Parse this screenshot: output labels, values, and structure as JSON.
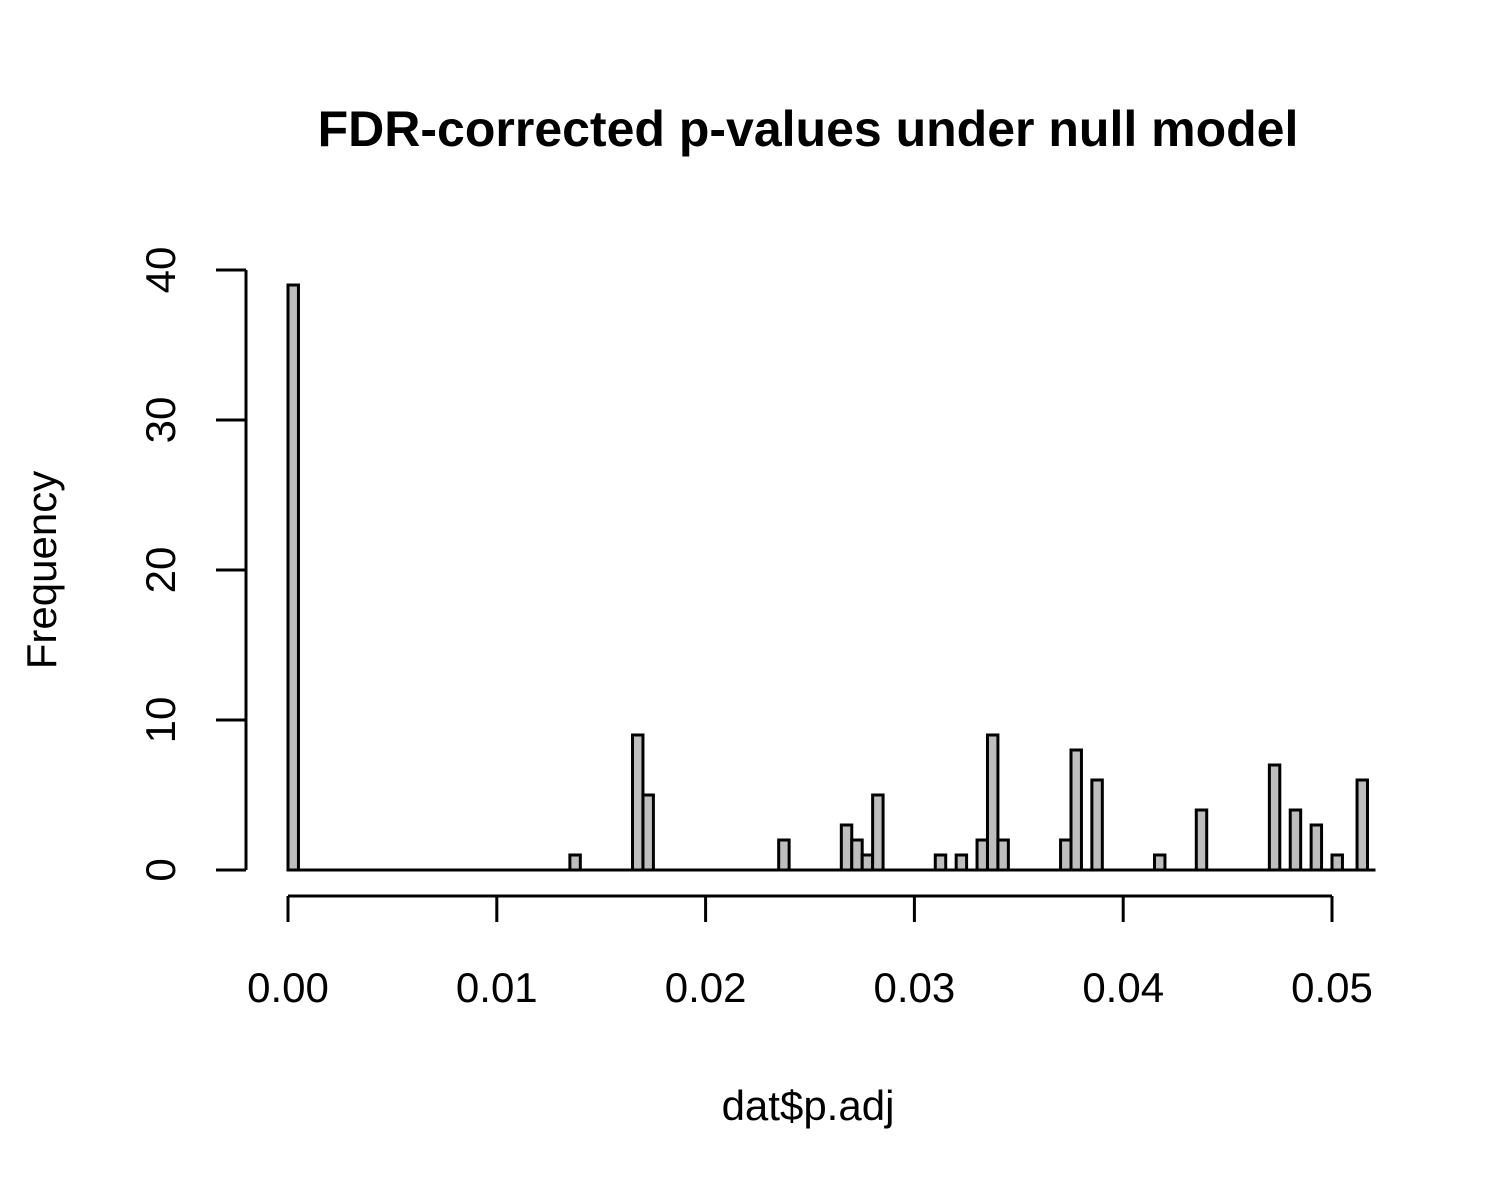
{
  "chart_data": {
    "type": "bar",
    "title": "FDR-corrected p-values under null model",
    "xlabel": "dat$p.adj",
    "ylabel": "Frequency",
    "xlim": [
      0.0,
      0.052
    ],
    "ylim": [
      0,
      40
    ],
    "bin_width": 0.0005,
    "x_ticks": [
      0.0,
      0.01,
      0.02,
      0.03,
      0.04,
      0.05
    ],
    "x_tick_labels": [
      "0.00",
      "0.01",
      "0.02",
      "0.03",
      "0.04",
      "0.05"
    ],
    "y_ticks": [
      0,
      10,
      20,
      30,
      40
    ],
    "y_tick_labels": [
      "0",
      "10",
      "20",
      "30",
      "40"
    ],
    "grid": false,
    "bars": [
      {
        "x0": 0.0,
        "x1": 0.0005,
        "count": 39
      },
      {
        "x0": 0.0135,
        "x1": 0.014,
        "count": 1
      },
      {
        "x0": 0.0165,
        "x1": 0.017,
        "count": 9
      },
      {
        "x0": 0.017,
        "x1": 0.0175,
        "count": 5
      },
      {
        "x0": 0.0235,
        "x1": 0.024,
        "count": 2
      },
      {
        "x0": 0.0265,
        "x1": 0.027,
        "count": 3
      },
      {
        "x0": 0.027,
        "x1": 0.0275,
        "count": 2
      },
      {
        "x0": 0.0275,
        "x1": 0.028,
        "count": 1
      },
      {
        "x0": 0.028,
        "x1": 0.0285,
        "count": 5
      },
      {
        "x0": 0.031,
        "x1": 0.0315,
        "count": 1
      },
      {
        "x0": 0.032,
        "x1": 0.0325,
        "count": 1
      },
      {
        "x0": 0.033,
        "x1": 0.0335,
        "count": 2
      },
      {
        "x0": 0.0335,
        "x1": 0.034,
        "count": 9
      },
      {
        "x0": 0.034,
        "x1": 0.0345,
        "count": 2
      },
      {
        "x0": 0.037,
        "x1": 0.0375,
        "count": 2
      },
      {
        "x0": 0.0375,
        "x1": 0.038,
        "count": 8
      },
      {
        "x0": 0.0385,
        "x1": 0.039,
        "count": 6
      },
      {
        "x0": 0.0415,
        "x1": 0.042,
        "count": 1
      },
      {
        "x0": 0.0435,
        "x1": 0.044,
        "count": 4
      },
      {
        "x0": 0.047,
        "x1": 0.0475,
        "count": 7
      },
      {
        "x0": 0.048,
        "x1": 0.0485,
        "count": 4
      },
      {
        "x0": 0.049,
        "x1": 0.0495,
        "count": 3
      },
      {
        "x0": 0.05,
        "x1": 0.0505,
        "count": 1
      },
      {
        "x0": 0.0512,
        "x1": 0.0517,
        "count": 6
      }
    ]
  }
}
